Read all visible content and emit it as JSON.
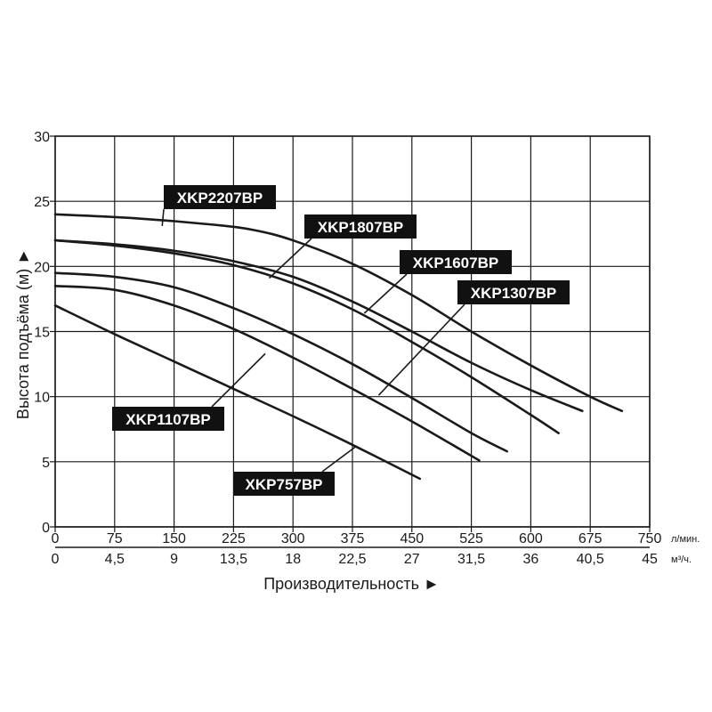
{
  "chart_data": {
    "type": "line",
    "title": "",
    "xlabel": "Производительность ►",
    "ylabel": "Высота подъёма (м) ►",
    "xlim": [
      0,
      750
    ],
    "ylim": [
      0,
      30
    ],
    "x_ticks": [
      "0",
      "75",
      "150",
      "225",
      "300",
      "375",
      "450",
      "525",
      "600",
      "675",
      "750"
    ],
    "x_ticks_secondary": [
      "0",
      "4,5",
      "9",
      "13,5",
      "18",
      "22,5",
      "27",
      "31,5",
      "36",
      "40,5",
      "45"
    ],
    "x_unit": "л/мин.",
    "x_unit_secondary": "м³/ч.",
    "y_ticks": [
      "0",
      "5",
      "10",
      "15",
      "20",
      "25",
      "30"
    ],
    "grid": true,
    "line_color": "#1a1a1a",
    "label_bg": "#111111",
    "series": [
      {
        "name": "XKP2207BP",
        "x": [
          0,
          100,
          200,
          250,
          300,
          375,
          450,
          525,
          600,
          675,
          715
        ],
        "y": [
          24,
          23.7,
          23.2,
          22.8,
          22.0,
          20.2,
          17.8,
          15.0,
          12.4,
          10.0,
          8.9
        ]
      },
      {
        "name": "XKP1807BP",
        "x": [
          0,
          75,
          150,
          225,
          300,
          375,
          450,
          525,
          600,
          665
        ],
        "y": [
          22,
          21.7,
          21.2,
          20.4,
          19.2,
          17.3,
          15.0,
          12.6,
          10.5,
          8.9
        ]
      },
      {
        "name": "XKP1607BP",
        "x": [
          0,
          75,
          150,
          225,
          300,
          375,
          450,
          525,
          600,
          635
        ],
        "y": [
          22,
          21.6,
          21.0,
          20.1,
          18.7,
          16.7,
          14.2,
          11.5,
          8.6,
          7.2
        ]
      },
      {
        "name": "XKP1307BP",
        "x": [
          0,
          75,
          150,
          225,
          300,
          375,
          450,
          525,
          570
        ],
        "y": [
          19.5,
          19.2,
          18.4,
          16.8,
          14.8,
          12.5,
          9.9,
          7.2,
          5.8
        ]
      },
      {
        "name": "XKP1107BP",
        "x": [
          0,
          75,
          150,
          225,
          300,
          375,
          450,
          535
        ],
        "y": [
          18.5,
          18.2,
          17.0,
          15.2,
          13.0,
          10.6,
          8.1,
          5.1
        ]
      },
      {
        "name": "XKP757BP",
        "x": [
          0,
          75,
          150,
          225,
          300,
          375,
          460
        ],
        "y": [
          17,
          14.8,
          12.7,
          10.6,
          8.5,
          6.3,
          3.7
        ]
      }
    ],
    "labels": [
      {
        "text": "XKP2207BP",
        "point": [
          135,
          23.1
        ]
      },
      {
        "text": "XKP1807BP",
        "point": [
          270,
          19.1
        ]
      },
      {
        "text": "XKP1607BP",
        "point": [
          390,
          16.4
        ]
      },
      {
        "text": "XKP1307BP",
        "point": [
          408,
          10.1
        ]
      },
      {
        "text": "XKP1107BP",
        "point": [
          265,
          13.3
        ]
      },
      {
        "text": "XKP757BP",
        "point": [
          380,
          6.2
        ]
      }
    ]
  }
}
